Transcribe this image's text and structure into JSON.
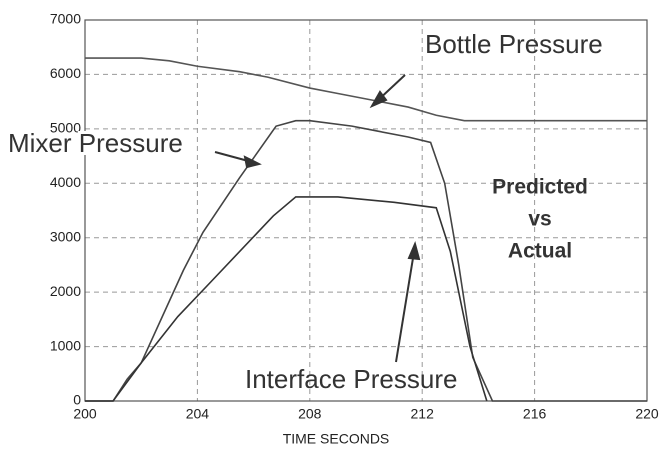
{
  "chart_data": {
    "type": "line",
    "x_label": "TIME SECONDS",
    "xlim": [
      200,
      220
    ],
    "xticks": [
      200,
      204,
      208,
      212,
      216,
      220
    ],
    "ylim": [
      0,
      7000
    ],
    "yticks": [
      0,
      1000,
      2000,
      3000,
      4000,
      5000,
      6000,
      7000
    ],
    "grid": true,
    "annotation": [
      "Predicted",
      "vs",
      "Actual"
    ],
    "series": [
      {
        "name": "Bottle Pressure",
        "color": "#555555",
        "x": [
          200,
          202,
          203,
          204,
          205.5,
          206.5,
          208,
          209,
          210.5,
          211.5,
          212.5,
          213.5,
          214,
          220
        ],
        "values": [
          6300,
          6300,
          6250,
          6150,
          6050,
          5950,
          5750,
          5650,
          5500,
          5400,
          5250,
          5150,
          5150,
          5150
        ]
      },
      {
        "name": "Mixer Pressure",
        "color": "#444444",
        "x": [
          200,
          201,
          201.5,
          202,
          203.5,
          204.2,
          205.5,
          206.8,
          207.5,
          208,
          209.5,
          210.5,
          211.5,
          212.3,
          212.8,
          213.3,
          213.8,
          214.5,
          220
        ],
        "values": [
          0,
          0,
          400,
          700,
          2400,
          3100,
          4100,
          5050,
          5150,
          5150,
          5050,
          4950,
          4850,
          4750,
          4000,
          2500,
          800,
          0,
          0
        ]
      },
      {
        "name": "Interface Pressure",
        "color": "#333333",
        "x": [
          200,
          201,
          202,
          203.3,
          204.5,
          206.7,
          207.5,
          209,
          211,
          212.5,
          213,
          213.7,
          214.3
        ],
        "values": [
          0,
          0,
          700,
          1550,
          2200,
          3400,
          3750,
          3750,
          3650,
          3550,
          2750,
          1000,
          0
        ]
      }
    ]
  }
}
